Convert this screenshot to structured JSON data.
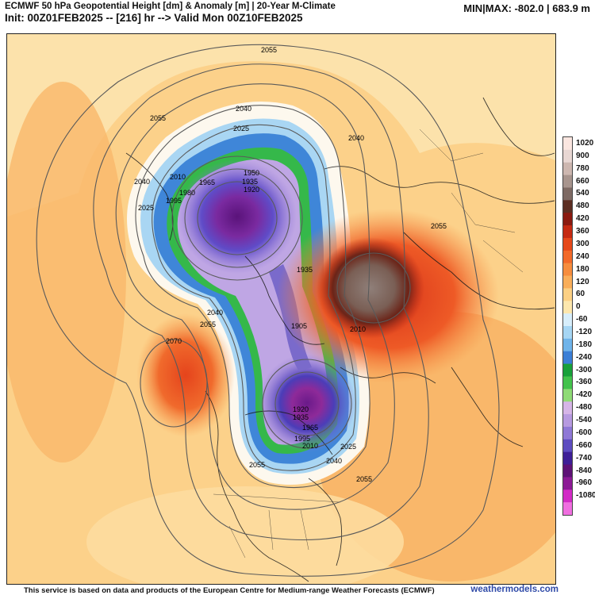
{
  "header": {
    "title": "ECMWF 50 hPa Geopotential Height [dm] & Anomaly [m] | 20-Year M-Climate",
    "subtitle": "Init: 00Z01FEB2025 -- [216] hr --> Valid Mon 00Z10FEB2025",
    "minmax": "MIN|MAX: -802.0 | 683.9 m"
  },
  "colorbar": {
    "labels": [
      "1020",
      "900",
      "780",
      "660",
      "540",
      "480",
      "420",
      "360",
      "300",
      "240",
      "180",
      "120",
      "60",
      "0",
      "-60",
      "-120",
      "-180",
      "-240",
      "-300",
      "-360",
      "-420",
      "-480",
      "-540",
      "-600",
      "-660",
      "-740",
      "-840",
      "-960",
      "-1080"
    ],
    "colors": [
      "#fbe6e0",
      "#e8d7d3",
      "#cdb7b0",
      "#a8958e",
      "#7e6a64",
      "#5c2e22",
      "#8b1a10",
      "#c52a12",
      "#e5481a",
      "#f26a2a",
      "#f68d3e",
      "#f9ae5a",
      "#fcd084",
      "#fde7ad",
      "#d7eefb",
      "#a6d6f4",
      "#6fb4ea",
      "#3b7fd6",
      "#18a03a",
      "#43c24c",
      "#8fdb76",
      "#d6b5e7",
      "#b79ae0",
      "#8f78d6",
      "#5d4cc0",
      "#3e1f97",
      "#5e1276",
      "#8c1a95",
      "#d22bc6",
      "#f06fe0"
    ]
  },
  "contours": {
    "labels": [
      "2055",
      "2040",
      "2055",
      "2025",
      "2040",
      "2010",
      "1965",
      "1950",
      "1935",
      "1920",
      "1980",
      "1995",
      "2025",
      "2040",
      "2055",
      "2070",
      "2040",
      "2055",
      "1935",
      "1905",
      "2010",
      "1920",
      "1935",
      "1965",
      "1995",
      "2010",
      "2025",
      "2040",
      "2055",
      "2055"
    ]
  },
  "footer": {
    "disclaimer": "This service is based on data and products of the European Centre for Medium-range Weather Forecasts (ECMWF)",
    "brand": "weathermodels.com"
  }
}
